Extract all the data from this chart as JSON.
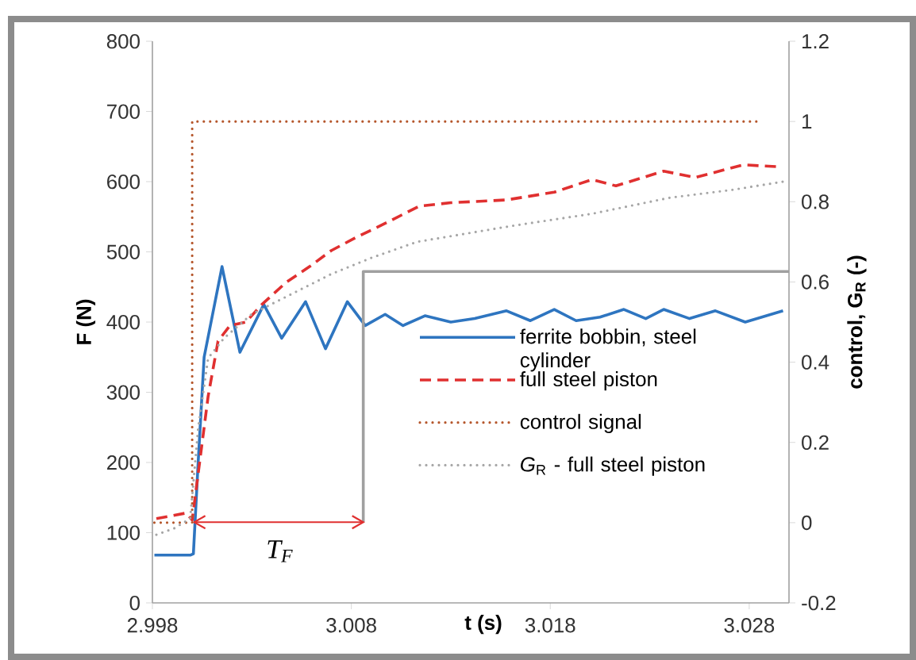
{
  "chart_data": {
    "type": "line",
    "xlabel": "t (s)",
    "ylabel": "F (N)",
    "y2label": "control, G$_{R}$ (-)",
    "xlim": [
      2.998,
      3.03
    ],
    "xticks": [
      2.998,
      3.008,
      3.018,
      3.028
    ],
    "ylim": [
      0,
      800
    ],
    "yticks": [
      0,
      100,
      200,
      300,
      400,
      500,
      600,
      700,
      800
    ],
    "y2lim": [
      -0.2,
      1.2
    ],
    "y2ticks": [
      -0.2,
      0,
      0.2,
      0.4,
      0.6,
      0.8,
      1,
      1.2
    ],
    "legend": "right",
    "annotations": [
      "T$_{F}$"
    ],
    "series": [
      {
        "name": "ferrite bobbin, steel cylinder",
        "color": "#2e75c0",
        "line_style": "solid",
        "x": [
          2.9981,
          2.9999,
          3.00006,
          3.0003,
          3.0006,
          3.0015,
          3.0024,
          3.0036,
          3.0045,
          3.0057,
          3.0067,
          3.0078,
          3.0087,
          3.0097,
          3.0106,
          3.0117,
          3.013,
          3.0142,
          3.0158,
          3.017,
          3.0182,
          3.0193,
          3.0205,
          3.0217,
          3.0228,
          3.0237,
          3.025,
          3.0263,
          3.0278,
          3.0297
        ],
        "values": [
          68,
          68,
          70,
          200,
          350,
          479,
          357,
          425,
          377,
          429,
          362,
          429,
          395,
          411,
          395,
          409,
          400,
          405,
          416,
          402,
          418,
          402,
          407,
          418,
          405,
          418,
          405,
          416,
          400,
          416
        ]
      },
      {
        "name": "full steel piston",
        "color": "#e03030",
        "line_style": "dashed",
        "x": [
          2.9982,
          2.9997,
          3.0,
          3.0008,
          3.0013,
          3.0019,
          3.0027,
          3.0035,
          3.0047,
          3.0059,
          3.007,
          3.0082,
          3.0098,
          3.0114,
          3.013,
          3.0158,
          3.0182,
          3.0201,
          3.0213,
          3.0237,
          3.0253,
          3.0277,
          3.0296
        ],
        "values": [
          120,
          128,
          118,
          294,
          373,
          395,
          400,
          425,
          456,
          479,
          502,
          520,
          542,
          565,
          570,
          574,
          585,
          603,
          594,
          615,
          606,
          624,
          621
        ]
      },
      {
        "name": "control signal",
        "color": "#b5562b",
        "line_style": "dotted",
        "axis": "y2",
        "x": [
          2.9981,
          3.0,
          3.0,
          3.0285
        ],
        "values": [
          0,
          0,
          1,
          1
        ]
      },
      {
        "name": "*G*$_{R}$ - full steel piston",
        "color": "#a6a6a6",
        "line_style": "dotted",
        "axis": "y2",
        "x": [
          2.9982,
          2.9991,
          2.9999,
          3.0003,
          3.0008,
          3.0016,
          3.003,
          3.005,
          3.007,
          3.009,
          3.0113,
          3.0137,
          3.0161,
          3.0201,
          3.024,
          3.0272,
          3.0297
        ],
        "values": [
          -0.03,
          -0.014,
          0.01,
          0.235,
          0.41,
          0.46,
          0.52,
          0.57,
          0.62,
          0.66,
          0.7,
          0.72,
          0.74,
          0.77,
          0.81,
          0.83,
          0.85
        ]
      },
      {
        "color": "#a0a0a0",
        "line_style": "solid",
        "x": [
          3.0086,
          3.0086,
          3.03
        ],
        "values": [
          115,
          472,
          472
        ]
      },
      {
        "color": "#e03030",
        "line_style": "solid",
        "x": [
          3.0001,
          3.0086
        ],
        "values": [
          115,
          115
        ]
      }
    ]
  }
}
